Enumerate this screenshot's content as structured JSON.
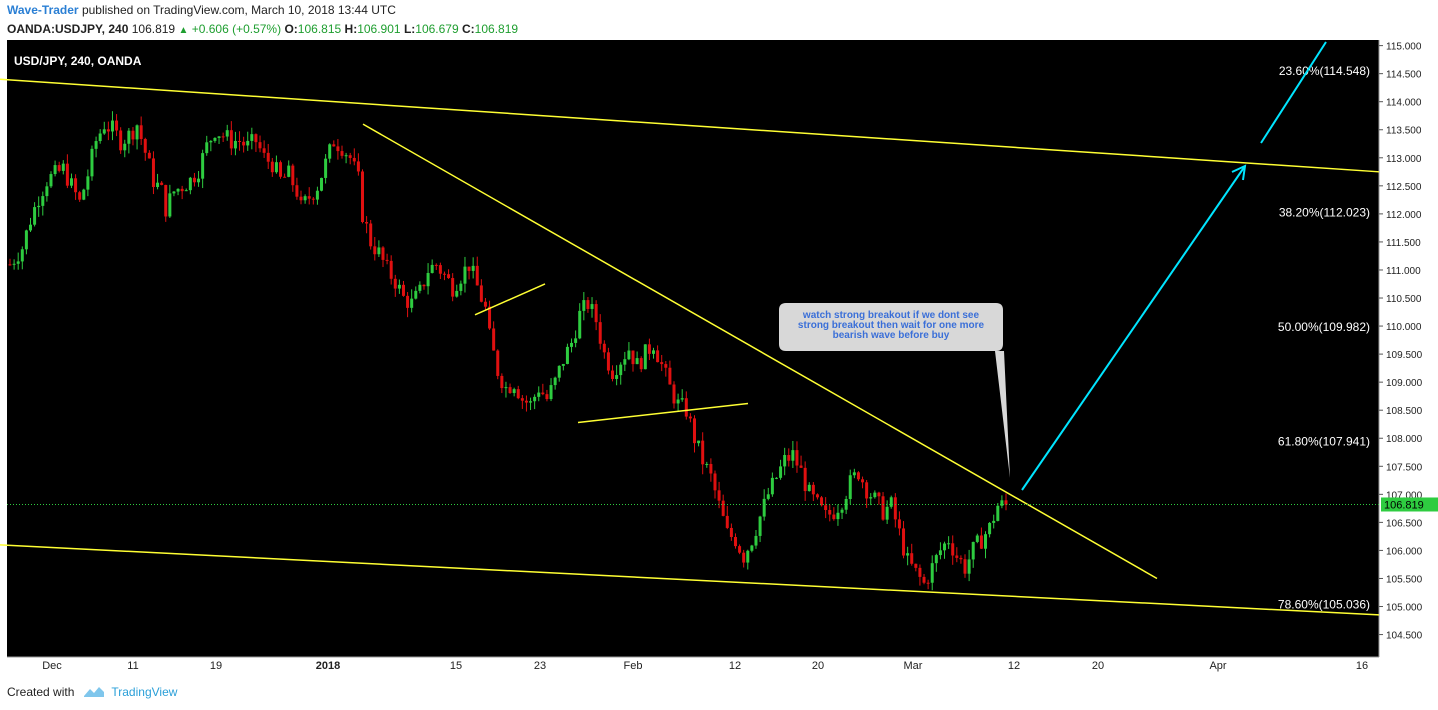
{
  "header": {
    "author": "Wave-Trader",
    "published": "published on TradingView.com, March 10, 2018 13:44 UTC",
    "symbol": "OANDA:USDJPY, 240",
    "last": "106.819",
    "change": "+0.606 (+0.57%)",
    "o_label": "O:",
    "o": "106.815",
    "h_label": "H:",
    "h": "106.901",
    "l_label": "L:",
    "l": "106.679",
    "c_label": "C:",
    "c": "106.819"
  },
  "footer": {
    "created_with": "Created with",
    "brand": "TradingView"
  },
  "colors": {
    "background": "#000000",
    "up": "#2ecc40",
    "down": "#e01010",
    "trendline": "#ffff33",
    "arrow": "#00e5ff",
    "text": "#ffffff",
    "callout_bg": "#d8d8d8",
    "callout_text": "#3a6fd8",
    "price_tag": "#2ecc40"
  },
  "chart_data": {
    "type": "candlestick",
    "title": "USD/JPY, 240, OANDA",
    "ylim": [
      104.1,
      115.1
    ],
    "y_ticks": [
      "104.500",
      "105.000",
      "105.500",
      "106.000",
      "106.500",
      "107.000",
      "107.500",
      "108.000",
      "108.500",
      "109.000",
      "109.500",
      "110.000",
      "110.500",
      "111.000",
      "111.500",
      "112.000",
      "112.500",
      "113.000",
      "113.500",
      "114.000",
      "114.500",
      "115.000"
    ],
    "x_ticks": [
      "Dec",
      "11",
      "19",
      "2018",
      "15",
      "23",
      "Feb",
      "12",
      "20",
      "Mar",
      "12",
      "20",
      "Apr",
      "16"
    ],
    "last_price": "106.819",
    "price_path": [
      [
        0,
        111.1
      ],
      [
        3,
        111.4
      ],
      [
        5,
        111.9
      ],
      [
        7,
        112.3
      ],
      [
        9,
        112.6
      ],
      [
        11,
        112.7
      ],
      [
        13,
        112.8
      ],
      [
        15,
        112.5
      ],
      [
        17,
        112.2
      ],
      [
        19,
        112.7
      ],
      [
        21,
        113.3
      ],
      [
        23,
        113.6
      ],
      [
        25,
        113.5
      ],
      [
        27,
        113.3
      ],
      [
        29,
        113.4
      ],
      [
        31,
        113.6
      ],
      [
        33,
        113.1
      ],
      [
        35,
        112.6
      ],
      [
        37,
        112.4
      ],
      [
        38,
        112.1
      ],
      [
        40,
        112.4
      ],
      [
        42,
        112.5
      ],
      [
        44,
        112.6
      ],
      [
        46,
        112.8
      ],
      [
        48,
        113.2
      ],
      [
        50,
        113.5
      ],
      [
        52,
        113.4
      ],
      [
        54,
        113.3
      ],
      [
        56,
        113.3
      ],
      [
        58,
        113.2
      ],
      [
        60,
        113.3
      ],
      [
        62,
        113.0
      ],
      [
        64,
        112.9
      ],
      [
        66,
        112.6
      ],
      [
        68,
        112.7
      ],
      [
        70,
        112.4
      ],
      [
        71,
        112.1
      ],
      [
        73,
        112.3
      ],
      [
        75,
        112.5
      ],
      [
        77,
        112.9
      ],
      [
        79,
        113.3
      ],
      [
        81,
        113.2
      ],
      [
        83,
        113.0
      ],
      [
        85,
        112.6
      ],
      [
        86,
        112.0
      ],
      [
        88,
        111.5
      ],
      [
        90,
        111.3
      ],
      [
        92,
        111.0
      ],
      [
        94,
        110.8
      ],
      [
        96,
        110.5
      ],
      [
        98,
        110.4
      ],
      [
        100,
        110.6
      ],
      [
        102,
        111.0
      ],
      [
        104,
        111.1
      ],
      [
        106,
        110.9
      ],
      [
        108,
        110.7
      ],
      [
        110,
        110.9
      ],
      [
        112,
        111.1
      ],
      [
        114,
        110.7
      ],
      [
        116,
        110.3
      ],
      [
        117,
        109.8
      ],
      [
        119,
        109.2
      ],
      [
        121,
        108.9
      ],
      [
        123,
        109.0
      ],
      [
        125,
        108.7
      ],
      [
        127,
        108.6
      ],
      [
        129,
        108.9
      ],
      [
        131,
        108.7
      ],
      [
        133,
        109.0
      ],
      [
        135,
        109.4
      ],
      [
        137,
        109.7
      ],
      [
        139,
        110.2
      ],
      [
        141,
        110.4
      ],
      [
        143,
        110.1
      ],
      [
        145,
        109.5
      ],
      [
        147,
        109.2
      ],
      [
        149,
        109.4
      ],
      [
        151,
        109.6
      ],
      [
        153,
        109.3
      ],
      [
        155,
        109.5
      ],
      [
        157,
        109.7
      ],
      [
        159,
        109.3
      ],
      [
        161,
        108.9
      ],
      [
        163,
        108.6
      ],
      [
        165,
        108.5
      ],
      [
        167,
        108.0
      ],
      [
        169,
        107.6
      ],
      [
        171,
        107.3
      ],
      [
        173,
        106.8
      ],
      [
        175,
        106.3
      ],
      [
        177,
        106.2
      ],
      [
        179,
        105.9
      ],
      [
        181,
        106.2
      ],
      [
        183,
        106.6
      ],
      [
        185,
        107.0
      ],
      [
        187,
        107.3
      ],
      [
        189,
        107.6
      ],
      [
        191,
        107.7
      ],
      [
        193,
        107.4
      ],
      [
        195,
        107.0
      ],
      [
        197,
        106.8
      ],
      [
        199,
        106.6
      ],
      [
        201,
        106.7
      ],
      [
        203,
        106.9
      ],
      [
        205,
        107.2
      ],
      [
        207,
        107.4
      ],
      [
        209,
        107.1
      ],
      [
        211,
        106.9
      ],
      [
        213,
        106.7
      ],
      [
        215,
        106.8
      ],
      [
        217,
        106.3
      ],
      [
        219,
        105.8
      ],
      [
        221,
        105.6
      ],
      [
        223,
        105.4
      ],
      [
        225,
        105.7
      ],
      [
        227,
        106.0
      ],
      [
        229,
        106.2
      ],
      [
        231,
        105.9
      ],
      [
        233,
        105.7
      ],
      [
        235,
        106.0
      ],
      [
        237,
        106.2
      ],
      [
        239,
        106.4
      ],
      [
        241,
        106.8
      ],
      [
        243,
        106.8
      ]
    ],
    "trendlines": [
      {
        "from": [
          0,
          114.4
        ],
        "to": [
          1379,
          112.75
        ],
        "x_units": "px",
        "note": "upper channel"
      },
      {
        "from": [
          0,
          106.1
        ],
        "to": [
          1379,
          104.85
        ],
        "x_units": "px",
        "note": "lower channel"
      },
      {
        "from": [
          363,
          113.6
        ],
        "to": [
          1157,
          105.5
        ],
        "x_units": "px",
        "note": "falling trendline"
      },
      {
        "from": [
          475,
          110.2
        ],
        "to": [
          545,
          110.75
        ],
        "x_units": "px",
        "note": "small support"
      },
      {
        "from": [
          578,
          108.28
        ],
        "to": [
          748,
          108.62
        ],
        "x_units": "px",
        "note": "support line"
      }
    ],
    "fib_levels": [
      {
        "label": "23.60%(114.548)",
        "value": 114.548
      },
      {
        "label": "38.20%(112.023)",
        "value": 112.023
      },
      {
        "label": "50.00%(109.982)",
        "value": 109.982
      },
      {
        "label": "61.80%(107.941)",
        "value": 107.941
      },
      {
        "label": "78.60%(105.036)",
        "value": 105.036
      }
    ],
    "annotation": "watch strong breakout if we dont see strong breakout then wait for one more bearish wave before buy"
  }
}
